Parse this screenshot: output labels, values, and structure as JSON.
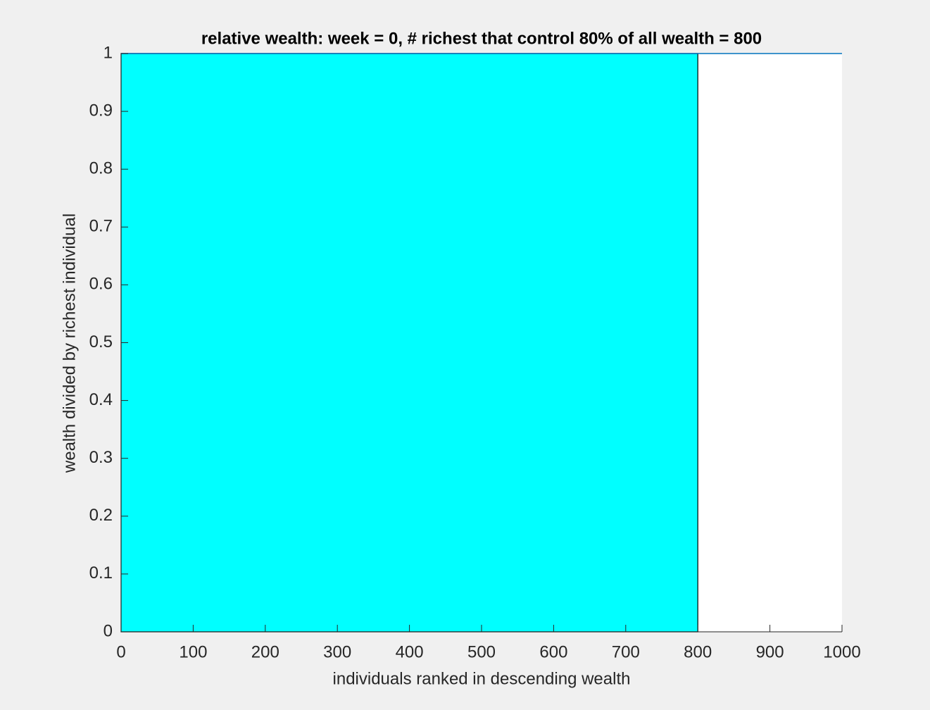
{
  "chart_data": {
    "type": "line",
    "title": "relative wealth:  week = 0, # richest that control 80% of all wealth = 800",
    "xlabel": "individuals ranked in descending wealth",
    "ylabel": "wealth divided by richest individual",
    "series": [
      {
        "x": [
          0,
          800
        ],
        "values": [
          1,
          1
        ],
        "color": "#00ffff",
        "fill": true
      },
      {
        "x": [
          0,
          1000
        ],
        "values": [
          1,
          1
        ],
        "color": "#0072bd",
        "fill": false
      }
    ],
    "xlim": [
      0,
      1000
    ],
    "xticks": [
      0,
      100,
      200,
      300,
      400,
      500,
      600,
      700,
      800,
      900,
      1000
    ],
    "ylim": [
      0,
      1
    ],
    "yticks": [
      0,
      0.1,
      0.2,
      0.3,
      0.4,
      0.5,
      0.6,
      0.7,
      0.8,
      0.9,
      1
    ],
    "grid": false
  }
}
